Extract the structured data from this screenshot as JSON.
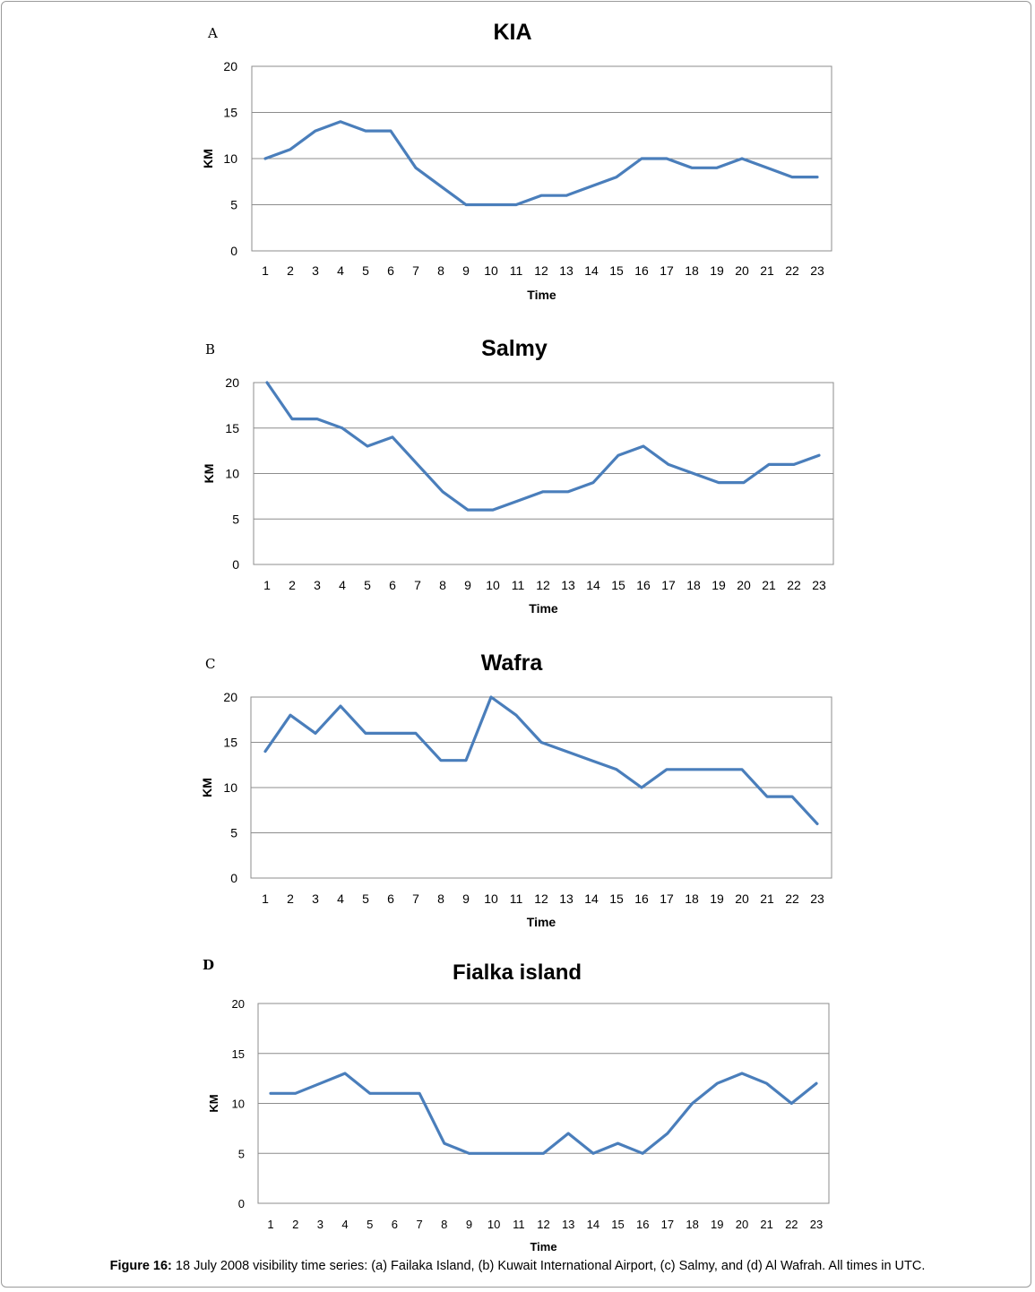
{
  "caption": {
    "label": "Figure 16:",
    "text": " 18 July 2008 visibility time series: (a) Failaka Island, (b) Kuwait International Airport, (c) Salmy, and (d) Al Wafrah. All times in UTC."
  },
  "colors": {
    "line": "#4a7ebb",
    "grid": "#8c8c8c",
    "border": "#8c8c8c"
  },
  "chart_data": [
    {
      "panel": "A",
      "type": "line",
      "title": "KIA",
      "xlabel": "Time",
      "ylabel": "KM",
      "ylim": [
        0,
        20
      ],
      "yticks": [
        0,
        5,
        10,
        15,
        20
      ],
      "grid": true,
      "legend": "none",
      "categories": [
        "1",
        "2",
        "3",
        "4",
        "5",
        "6",
        "7",
        "8",
        "9",
        "10",
        "11",
        "12",
        "13",
        "14",
        "15",
        "16",
        "17",
        "18",
        "19",
        "20",
        "21",
        "22",
        "23"
      ],
      "series": [
        {
          "values": [
            10,
            11,
            13,
            14,
            13,
            13,
            9,
            7,
            5,
            5,
            5,
            6,
            6,
            7,
            8,
            10,
            10,
            9,
            9,
            10,
            9,
            8,
            8
          ]
        }
      ]
    },
    {
      "panel": "B",
      "type": "line",
      "title": "Salmy",
      "xlabel": "Time",
      "ylabel": "KM",
      "ylim": [
        0,
        20
      ],
      "yticks": [
        0,
        5,
        10,
        15,
        20
      ],
      "grid": true,
      "legend": "none",
      "categories": [
        "1",
        "2",
        "3",
        "4",
        "5",
        "6",
        "7",
        "8",
        "9",
        "10",
        "11",
        "12",
        "13",
        "14",
        "15",
        "16",
        "17",
        "18",
        "19",
        "20",
        "21",
        "22",
        "23"
      ],
      "series": [
        {
          "values": [
            20,
            16,
            16,
            15,
            13,
            14,
            11,
            8,
            6,
            6,
            7,
            8,
            8,
            9,
            12,
            13,
            11,
            10,
            9,
            9,
            11,
            11,
            12
          ]
        }
      ]
    },
    {
      "panel": "C",
      "type": "line",
      "title": "Wafra",
      "xlabel": "Time",
      "ylabel": "KM",
      "ylim": [
        0,
        20
      ],
      "yticks": [
        0,
        5,
        10,
        15,
        20
      ],
      "grid": true,
      "legend": "none",
      "categories": [
        "1",
        "2",
        "3",
        "4",
        "5",
        "6",
        "7",
        "8",
        "9",
        "10",
        "11",
        "12",
        "13",
        "14",
        "15",
        "16",
        "17",
        "18",
        "19",
        "20",
        "21",
        "22",
        "23"
      ],
      "series": [
        {
          "values": [
            14,
            18,
            16,
            19,
            16,
            16,
            16,
            13,
            13,
            20,
            18,
            15,
            14,
            13,
            12,
            10,
            12,
            12,
            12,
            12,
            9,
            9,
            6
          ]
        }
      ]
    },
    {
      "panel": "D",
      "type": "line",
      "title": "Fialka island",
      "xlabel": "Time",
      "ylabel": "KM",
      "ylim": [
        0,
        20
      ],
      "yticks": [
        0,
        5,
        10,
        15,
        20
      ],
      "grid": true,
      "legend": "none",
      "categories": [
        "1",
        "2",
        "3",
        "4",
        "5",
        "6",
        "7",
        "8",
        "9",
        "10",
        "11",
        "12",
        "13",
        "14",
        "15",
        "16",
        "17",
        "18",
        "19",
        "20",
        "21",
        "22",
        "23"
      ],
      "series": [
        {
          "values": [
            11,
            11,
            12,
            13,
            11,
            11,
            11,
            6,
            5,
            5,
            5,
            5,
            7,
            5,
            6,
            5,
            7,
            10,
            12,
            13,
            12,
            10,
            12
          ]
        }
      ]
    }
  ]
}
